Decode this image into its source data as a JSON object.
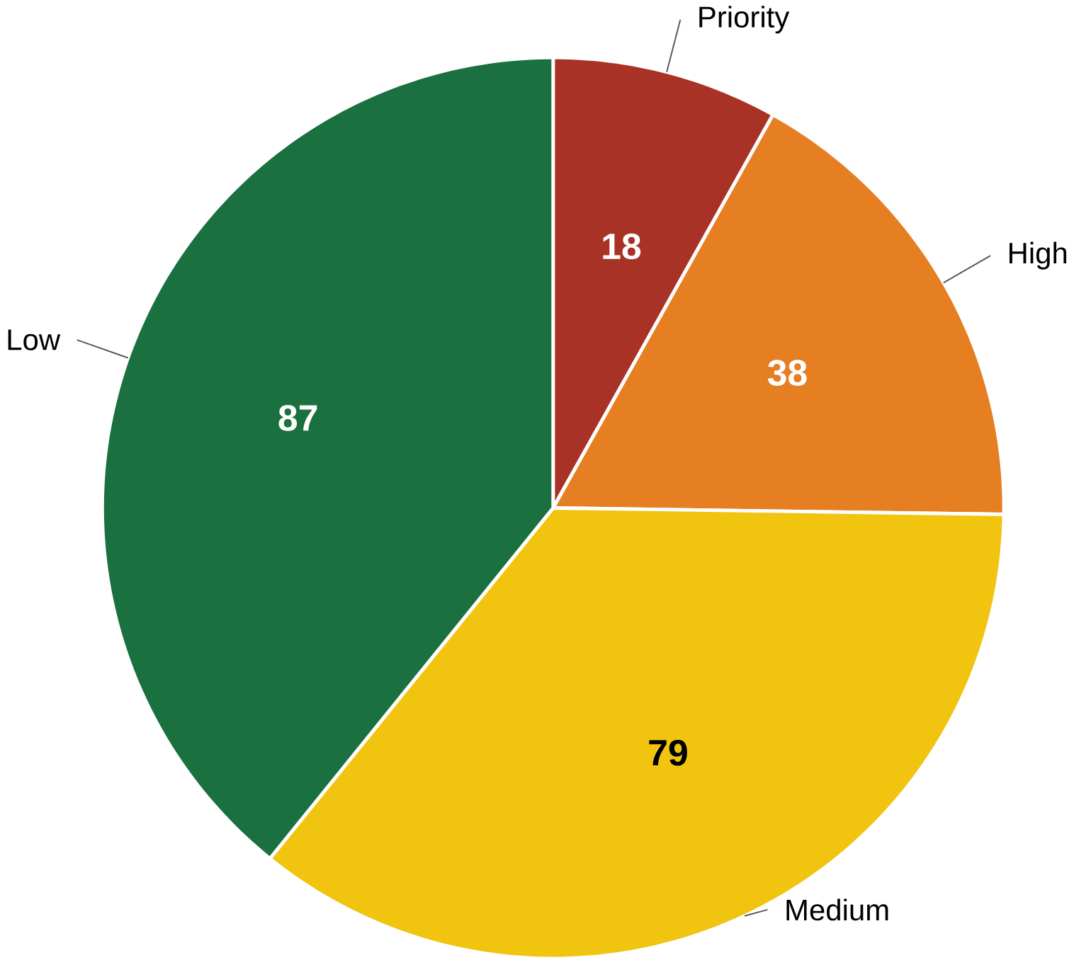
{
  "chart_data": {
    "type": "pie",
    "categories": [
      "Priority",
      "High",
      "Medium",
      "Low"
    ],
    "values": [
      18,
      38,
      79,
      87
    ],
    "colors": [
      "#a93226",
      "#e67e22",
      "#f1c40f",
      "#1b7040"
    ],
    "data_labels": true
  }
}
